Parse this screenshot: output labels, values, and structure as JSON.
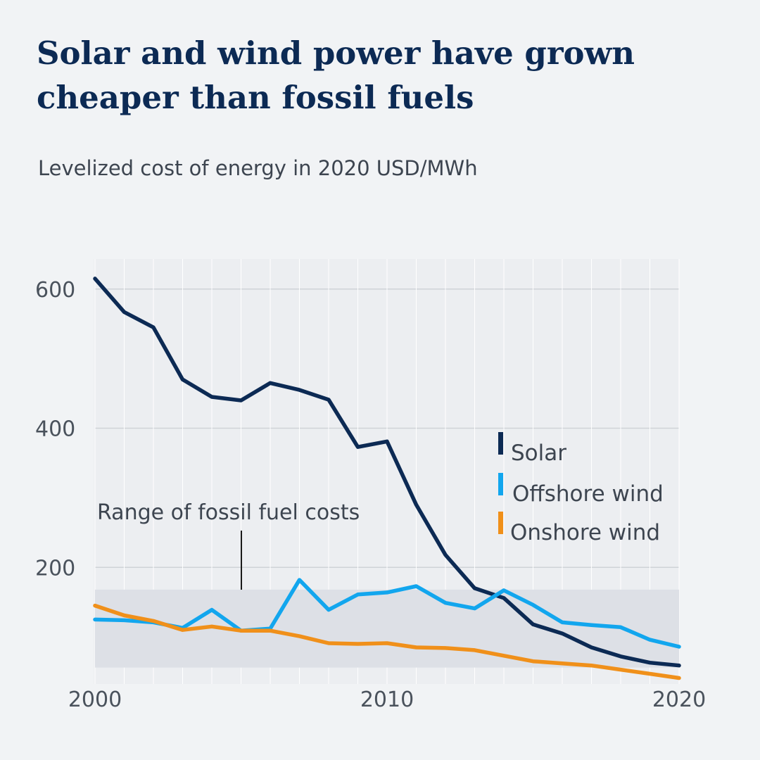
{
  "title": "Solar and wind power have grown cheaper than fossil fuels",
  "subtitle": "Levelized cost of energy in 2020 USD/MWh",
  "colors": {
    "solar": "#0c2a54",
    "offshore": "#12a6ee",
    "onshore": "#f0901a",
    "fossil_band": "#dde0e6",
    "grid": "#cfd3d8"
  },
  "chart_data": {
    "type": "line",
    "title": "Solar and wind power have grown cheaper than fossil fuels",
    "subtitle": "Levelized cost of energy in 2020 USD/MWh",
    "xlabel": "",
    "ylabel": "",
    "x": [
      2000,
      2001,
      2002,
      2003,
      2004,
      2005,
      2006,
      2007,
      2008,
      2009,
      2010,
      2011,
      2012,
      2013,
      2014,
      2015,
      2016,
      2017,
      2018,
      2019,
      2020
    ],
    "xlim": [
      2000,
      2020
    ],
    "ylim": [
      0,
      650
    ],
    "x_ticks": [
      "2000",
      "2010",
      "2020"
    ],
    "y_ticks": [
      "200",
      "400",
      "600"
    ],
    "grid": true,
    "series": [
      {
        "name": "Solar",
        "color_key": "solar",
        "values": [
          615,
          567,
          545,
          470,
          445,
          440,
          465,
          455,
          441,
          373,
          381,
          290,
          218,
          170,
          156,
          118,
          105,
          85,
          72,
          63,
          59
        ]
      },
      {
        "name": "Offshore wind",
        "color_key": "offshore",
        "values": [
          125,
          124,
          121,
          113,
          139,
          109,
          112,
          182,
          139,
          161,
          164,
          173,
          149,
          141,
          167,
          146,
          121,
          117,
          114,
          96,
          86
        ]
      },
      {
        "name": "Onshore wind",
        "color_key": "onshore",
        "values": [
          145,
          131,
          123,
          110,
          115,
          109,
          109,
          101,
          91,
          90,
          91,
          85,
          84,
          81,
          73,
          65,
          62,
          59,
          53,
          47,
          41
        ]
      }
    ],
    "range_band": {
      "label": "Range of fossil fuel costs",
      "min": 56,
      "max": 168
    },
    "legend": {
      "placement": "right",
      "entries": [
        "Solar",
        "Offshore wind",
        "Onshore wind"
      ]
    }
  }
}
